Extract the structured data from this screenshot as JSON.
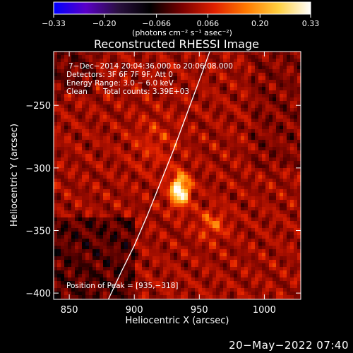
{
  "chart_data": {
    "type": "heatmap",
    "title": "Reconstructed RHESSI Image",
    "xlabel": "Heliocentric X (arcsec)",
    "ylabel": "Heliocentric Y (arcsec)",
    "xlim": [
      838,
      1028
    ],
    "ylim": [
      -405,
      -207
    ],
    "x_ticks": [
      850,
      900,
      950,
      1000
    ],
    "y_ticks": [
      -250,
      -300,
      -350,
      -400
    ],
    "colorbar": {
      "range": [
        -0.33,
        0.33
      ],
      "tick_values": [
        -0.33,
        -0.2,
        -0.066,
        0.066,
        0.2,
        0.33
      ],
      "tick_labels": [
        "−0.33",
        "−0.20",
        "−0.066",
        "0.066",
        "0.20",
        "0.33"
      ],
      "units_label": "(photons cm⁻² s⁻¹ asec⁻²)",
      "colormap": [
        "#0000ff",
        "#5a00c8",
        "#2a1040",
        "#000000",
        "#7a0000",
        "#e02000",
        "#ff7a00",
        "#ffd040",
        "#ffffff"
      ]
    },
    "annotations": {
      "time_range": "7−Dec−2014 20:04:36.000 to 20:06:08.000",
      "detectors": "Detectors: 3F 6F 7F 9F, Att 0",
      "energy_range": "Energy Range: 3.0 − 6.0 keV",
      "method": "Clean",
      "total_counts": "Total counts: 3.39E+03",
      "peak": "Position of Peak = [935,−318]"
    },
    "peak_position": [
      935,
      -318
    ],
    "limb_curve": [
      [
        880,
        -405
      ],
      [
        890,
        -383
      ],
      [
        900,
        -362
      ],
      [
        910,
        -338
      ],
      [
        920,
        -312
      ],
      [
        930,
        -286
      ],
      [
        940,
        -258
      ],
      [
        950,
        -230
      ],
      [
        958,
        -207
      ]
    ]
  },
  "footer": {
    "timestamp": "20−May−2022 07:40"
  }
}
